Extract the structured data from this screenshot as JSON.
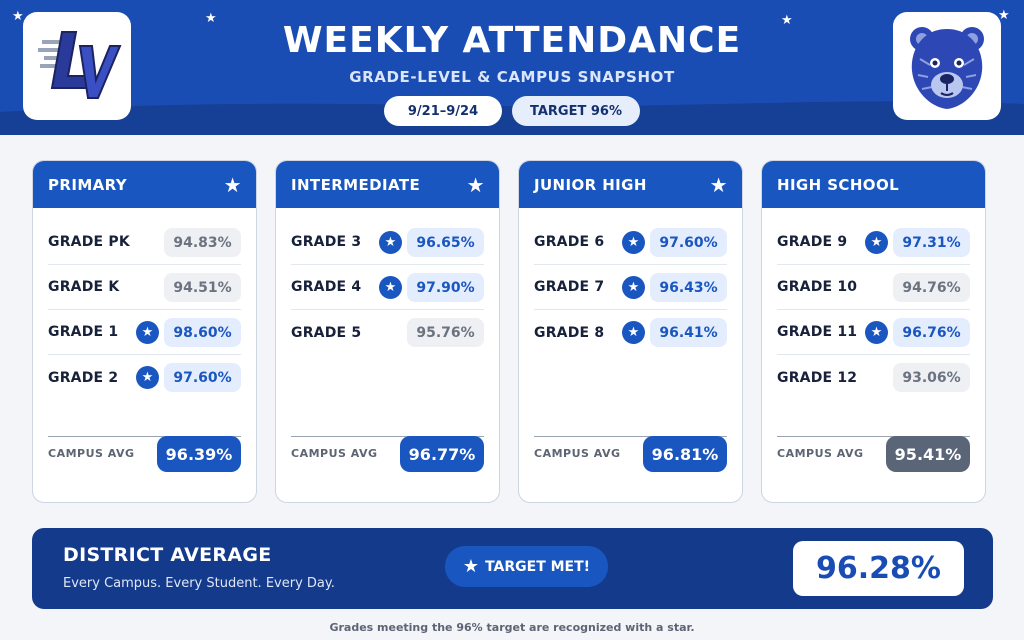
{
  "header": {
    "title": "WEEKLY ATTENDANCE",
    "subtitle": "GRADE-LEVEL & CAMPUS SNAPSHOT",
    "dates_pill": "9/21–9/24",
    "target_pill": "TARGET 96%",
    "left_logo": "lv-monogram-logo",
    "right_logo": "bear-mascot-logo"
  },
  "colors": {
    "header_blue": "#1a4db3",
    "card_head_blue": "#1a56c0",
    "district_navy": "#143a8c",
    "met_text": "#1a56c0",
    "missed_text": "#6b7280",
    "missed_avg": "#5b6578"
  },
  "star_glyph": "★",
  "campuses": [
    {
      "name": "PRIMARY",
      "header_star": true,
      "grades": [
        {
          "label": "GRADE PK",
          "value": "94.83%",
          "met": false
        },
        {
          "label": "GRADE K",
          "value": "94.51%",
          "met": false
        },
        {
          "label": "GRADE 1",
          "value": "98.60%",
          "met": true
        },
        {
          "label": "GRADE 2",
          "value": "97.60%",
          "met": true
        }
      ],
      "avg_label": "CAMPUS AVG",
      "avg_value": "96.39%",
      "avg_met": true
    },
    {
      "name": "INTERMEDIATE",
      "header_star": true,
      "grades": [
        {
          "label": "GRADE 3",
          "value": "96.65%",
          "met": true
        },
        {
          "label": "GRADE 4",
          "value": "97.90%",
          "met": true
        },
        {
          "label": "GRADE 5",
          "value": "95.76%",
          "met": false
        }
      ],
      "avg_label": "CAMPUS AVG",
      "avg_value": "96.77%",
      "avg_met": true
    },
    {
      "name": "JUNIOR HIGH",
      "header_star": true,
      "grades": [
        {
          "label": "GRADE 6",
          "value": "97.60%",
          "met": true
        },
        {
          "label": "GRADE 7",
          "value": "96.43%",
          "met": true
        },
        {
          "label": "GRADE 8",
          "value": "96.41%",
          "met": true
        }
      ],
      "avg_label": "CAMPUS AVG",
      "avg_value": "96.81%",
      "avg_met": true
    },
    {
      "name": "HIGH SCHOOL",
      "header_star": false,
      "grades": [
        {
          "label": "GRADE 9",
          "value": "97.31%",
          "met": true
        },
        {
          "label": "GRADE 10",
          "value": "94.76%",
          "met": false
        },
        {
          "label": "GRADE 11",
          "value": "96.76%",
          "met": true
        },
        {
          "label": "GRADE 12",
          "value": "93.06%",
          "met": false
        }
      ],
      "avg_label": "CAMPUS AVG",
      "avg_value": "95.41%",
      "avg_met": false
    }
  ],
  "district": {
    "title": "DISTRICT AVERAGE",
    "subtitle": "Every Campus. Every Student. Every Day.",
    "badge": "TARGET MET!",
    "value": "96.28%"
  },
  "footnote": "Grades meeting the 96% target are recognized with a star."
}
